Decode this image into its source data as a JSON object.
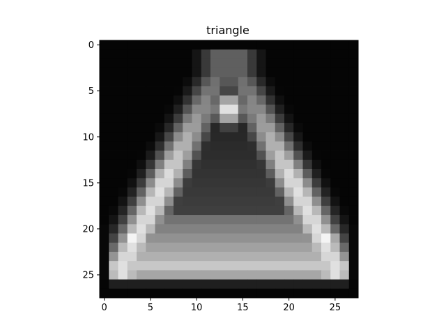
{
  "chart_data": {
    "type": "heatmap",
    "title": "triangle",
    "xlabel": "",
    "ylabel": "",
    "colormap": "gray",
    "grid": false,
    "rows": 28,
    "cols": 28,
    "xlim": [
      -0.5,
      27.5
    ],
    "ylim": [
      27.5,
      -0.5
    ],
    "x_ticks": [
      0,
      5,
      10,
      15,
      20,
      25
    ],
    "y_ticks": [
      0,
      5,
      10,
      15,
      20,
      25
    ],
    "x_tick_labels": [
      "0",
      "5",
      "10",
      "15",
      "20",
      "25"
    ],
    "y_tick_labels": [
      "0",
      "5",
      "10",
      "15",
      "20",
      "25"
    ],
    "colors": {
      "axis": "#000000",
      "background": "#ffffff"
    }
  }
}
